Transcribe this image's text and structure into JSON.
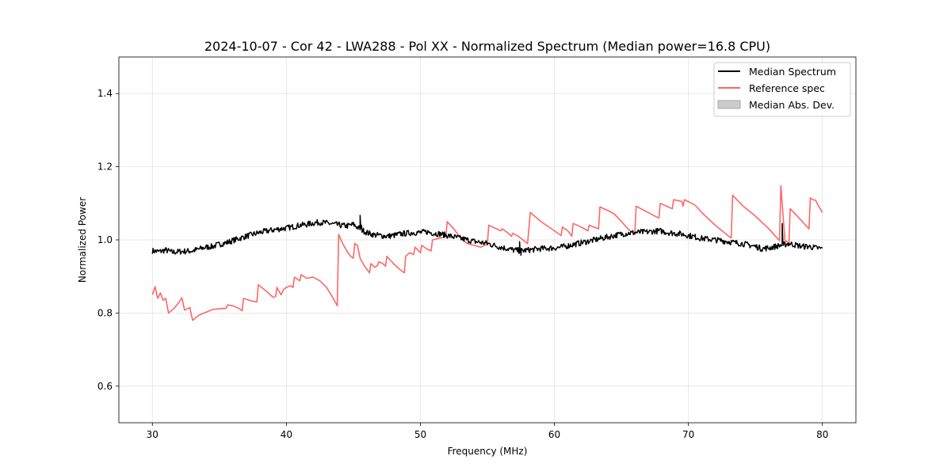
{
  "chart_data": {
    "type": "line",
    "title": "2024-10-07 - Cor 42 - LWA288 - Pol XX - Normalized Spectrum (Median power=16.8 CPU)",
    "xlabel": "Frequency (MHz)",
    "ylabel": "Normalized Power",
    "xlim": [
      27.5,
      82.5
    ],
    "ylim": [
      0.5,
      1.5
    ],
    "xticks": [
      30,
      40,
      50,
      60,
      70,
      80
    ],
    "yticks": [
      0.6,
      0.8,
      1.0,
      1.2,
      1.4
    ],
    "xtick_labels": [
      "30",
      "40",
      "50",
      "60",
      "70",
      "80"
    ],
    "ytick_labels": [
      "0.6",
      "0.8",
      "1.0",
      "1.2",
      "1.4"
    ],
    "grid": true,
    "legend_position": "top-right",
    "legend": [
      "Median Spectrum",
      "Reference spec",
      "Median Abs. Dev."
    ],
    "series": [
      {
        "name": "Median Spectrum",
        "color": "#000000",
        "points": [
          [
            30,
            0.97
          ],
          [
            30.5,
            0.968
          ],
          [
            31,
            0.972
          ],
          [
            31.5,
            0.966
          ],
          [
            32,
            0.968
          ],
          [
            33,
            0.97
          ],
          [
            33.5,
            0.975
          ],
          [
            34,
            0.98
          ],
          [
            34.5,
            0.982
          ],
          [
            35,
            0.988
          ],
          [
            35.5,
            0.992
          ],
          [
            36,
            0.998
          ],
          [
            36.5,
            1.004
          ],
          [
            37,
            1.01
          ],
          [
            37.5,
            1.015
          ],
          [
            38,
            1.02
          ],
          [
            38.5,
            1.024
          ],
          [
            39,
            1.027
          ],
          [
            39.5,
            1.03
          ],
          [
            40,
            1.032
          ],
          [
            40.5,
            1.036
          ],
          [
            41,
            1.04
          ],
          [
            41.5,
            1.042
          ],
          [
            42,
            1.046
          ],
          [
            42.5,
            1.048
          ],
          [
            43,
            1.046
          ],
          [
            43.5,
            1.043
          ],
          [
            44,
            1.04
          ],
          [
            44.5,
            1.038
          ],
          [
            45,
            1.042
          ],
          [
            45.5,
            1.03
          ],
          [
            46,
            1.02
          ],
          [
            46.5,
            1.014
          ],
          [
            47,
            1.012
          ],
          [
            47.5,
            1.01
          ],
          [
            48,
            1.012
          ],
          [
            48.5,
            1.016
          ],
          [
            49,
            1.018
          ],
          [
            49.5,
            1.02
          ],
          [
            50,
            1.02
          ],
          [
            50.5,
            1.022
          ],
          [
            51,
            1.018
          ],
          [
            51.5,
            1.016
          ],
          [
            52,
            1.012
          ],
          [
            52.5,
            1.008
          ],
          [
            53,
            1.004
          ],
          [
            53.5,
            1.0
          ],
          [
            54,
            0.996
          ],
          [
            54.5,
            0.993
          ],
          [
            55,
            0.99
          ],
          [
            55.5,
            0.985
          ],
          [
            56,
            0.98
          ],
          [
            56.5,
            0.976
          ],
          [
            57,
            0.972
          ],
          [
            57.5,
            0.97
          ],
          [
            58,
            0.972
          ],
          [
            58.5,
            0.974
          ],
          [
            59,
            0.976
          ],
          [
            59.5,
            0.977
          ],
          [
            60,
            0.978
          ],
          [
            60.5,
            0.98
          ],
          [
            61,
            0.984
          ],
          [
            61.5,
            0.988
          ],
          [
            62,
            0.992
          ],
          [
            62.5,
            0.996
          ],
          [
            63,
            1.0
          ],
          [
            63.5,
            1.004
          ],
          [
            64,
            1.008
          ],
          [
            64.5,
            1.012
          ],
          [
            65,
            1.016
          ],
          [
            65.5,
            1.018
          ],
          [
            66,
            1.02
          ],
          [
            66.5,
            1.021
          ],
          [
            67,
            1.022
          ],
          [
            67.5,
            1.024
          ],
          [
            68,
            1.024
          ],
          [
            68.5,
            1.02
          ],
          [
            69,
            1.018
          ],
          [
            69.5,
            1.016
          ],
          [
            70,
            1.012
          ],
          [
            70.5,
            1.008
          ],
          [
            71,
            1.004
          ],
          [
            71.5,
            1.002
          ],
          [
            72,
            1.0
          ],
          [
            72.5,
            0.998
          ],
          [
            73,
            0.995
          ],
          [
            73.5,
            0.992
          ],
          [
            74,
            0.99
          ],
          [
            74.5,
            0.986
          ],
          [
            75,
            0.982
          ],
          [
            75.5,
            0.976
          ],
          [
            76,
            0.978
          ],
          [
            76.5,
            0.982
          ],
          [
            77,
            0.986
          ],
          [
            77.5,
            0.99
          ],
          [
            78,
            0.986
          ],
          [
            78.5,
            0.982
          ],
          [
            79,
            0.982
          ],
          [
            79.5,
            0.978
          ],
          [
            80,
            0.976
          ]
        ],
        "spikes": [
          [
            45.5,
            1.067
          ],
          [
            45.6,
            1.04
          ],
          [
            57.4,
            0.995
          ],
          [
            57.5,
            0.958
          ],
          [
            77.0,
            1.045
          ],
          [
            77.1,
            0.985
          ]
        ]
      },
      {
        "name": "Reference spec",
        "color": "#ff6666",
        "points": [
          [
            30,
            0.85
          ],
          [
            30.2,
            0.872
          ],
          [
            30.4,
            0.84
          ],
          [
            30.6,
            0.855
          ],
          [
            30.8,
            0.835
          ],
          [
            31,
            0.84
          ],
          [
            31.2,
            0.8
          ],
          [
            31.6,
            0.812
          ],
          [
            32,
            0.83
          ],
          [
            32.2,
            0.842
          ],
          [
            32.4,
            0.808
          ],
          [
            32.8,
            0.815
          ],
          [
            33,
            0.78
          ],
          [
            33.5,
            0.795
          ],
          [
            34,
            0.802
          ],
          [
            34.5,
            0.81
          ],
          [
            35,
            0.812
          ],
          [
            35.5,
            0.813
          ],
          [
            35.6,
            0.822
          ],
          [
            36,
            0.82
          ],
          [
            36.5,
            0.812
          ],
          [
            36.7,
            0.806
          ],
          [
            36.8,
            0.84
          ],
          [
            37.5,
            0.832
          ],
          [
            37.8,
            0.83
          ],
          [
            37.9,
            0.877
          ],
          [
            38.5,
            0.86
          ],
          [
            39,
            0.843
          ],
          [
            39.2,
            0.845
          ],
          [
            39.3,
            0.87
          ],
          [
            39.6,
            0.85
          ],
          [
            39.8,
            0.865
          ],
          [
            40,
            0.87
          ],
          [
            40.3,
            0.875
          ],
          [
            40.5,
            0.87
          ],
          [
            40.6,
            0.898
          ],
          [
            41,
            0.888
          ],
          [
            41.1,
            0.905
          ],
          [
            41.5,
            0.895
          ],
          [
            42,
            0.898
          ],
          [
            42.5,
            0.888
          ],
          [
            43,
            0.87
          ],
          [
            43.5,
            0.84
          ],
          [
            43.8,
            0.82
          ],
          [
            43.9,
            1.015
          ],
          [
            44.2,
            0.99
          ],
          [
            44.5,
            0.97
          ],
          [
            44.8,
            0.955
          ],
          [
            45,
            0.95
          ],
          [
            45.1,
            0.99
          ],
          [
            45.3,
            0.985
          ],
          [
            45.5,
            0.95
          ],
          [
            45.8,
            0.93
          ],
          [
            46,
            0.92
          ],
          [
            46.2,
            0.91
          ],
          [
            46.3,
            0.935
          ],
          [
            46.6,
            0.925
          ],
          [
            46.8,
            0.93
          ],
          [
            46.9,
            0.94
          ],
          [
            47.2,
            0.935
          ],
          [
            47.4,
            0.928
          ],
          [
            47.5,
            0.955
          ],
          [
            48,
            0.935
          ],
          [
            48.5,
            0.918
          ],
          [
            48.8,
            0.91
          ],
          [
            48.9,
            0.955
          ],
          [
            49.2,
            0.965
          ],
          [
            49.5,
            0.96
          ],
          [
            49.6,
            0.98
          ],
          [
            50,
            0.965
          ],
          [
            50.1,
            0.985
          ],
          [
            50.5,
            0.975
          ],
          [
            50.8,
            0.97
          ],
          [
            50.9,
            1.0
          ],
          [
            51.5,
            1.005
          ],
          [
            51.9,
            1.01
          ],
          [
            52,
            1.05
          ],
          [
            52.5,
            1.03
          ],
          [
            53,
            1.005
          ],
          [
            53.5,
            0.99
          ],
          [
            54,
            0.985
          ],
          [
            54.5,
            0.98
          ],
          [
            55,
            0.988
          ],
          [
            55.1,
            1.04
          ],
          [
            56,
            1.025
          ],
          [
            56.1,
            1.03
          ],
          [
            56.5,
            1.02
          ],
          [
            56.8,
            1.01
          ],
          [
            56.9,
            1.018
          ],
          [
            57.3,
            1.01
          ],
          [
            58,
            0.99
          ],
          [
            58.2,
            1.075
          ],
          [
            59,
            1.05
          ],
          [
            60,
            1.025
          ],
          [
            60.5,
            1.012
          ],
          [
            60.6,
            1.035
          ],
          [
            61,
            1.025
          ],
          [
            61.3,
            1.01
          ],
          [
            61.4,
            1.045
          ],
          [
            62,
            1.035
          ],
          [
            62.5,
            1.025
          ],
          [
            62.6,
            1.04
          ],
          [
            63.3,
            1.03
          ],
          [
            63.4,
            1.09
          ],
          [
            64,
            1.08
          ],
          [
            64.5,
            1.07
          ],
          [
            65,
            1.05
          ],
          [
            65.5,
            1.03
          ],
          [
            66,
            1.015
          ],
          [
            66.1,
            1.092
          ],
          [
            67,
            1.075
          ],
          [
            67.5,
            1.065
          ],
          [
            67.8,
            1.06
          ],
          [
            67.9,
            1.1
          ],
          [
            68.5,
            1.09
          ],
          [
            68.8,
            1.085
          ],
          [
            68.9,
            1.11
          ],
          [
            69.5,
            1.105
          ],
          [
            69.6,
            1.092
          ],
          [
            69.7,
            1.11
          ],
          [
            70.5,
            1.095
          ],
          [
            71,
            1.075
          ],
          [
            72,
            1.04
          ],
          [
            73,
            1.01
          ],
          [
            73.2,
            1.005
          ],
          [
            73.3,
            1.122
          ],
          [
            74,
            1.095
          ],
          [
            75,
            1.065
          ],
          [
            76,
            1.03
          ],
          [
            76.8,
            0.998
          ],
          [
            76.9,
            1.148
          ],
          [
            77.2,
            1.0
          ],
          [
            77.5,
            0.99
          ],
          [
            77.6,
            1.085
          ],
          [
            78,
            1.07
          ],
          [
            78.5,
            1.05
          ],
          [
            79,
            1.03
          ],
          [
            79.1,
            1.115
          ],
          [
            79.3,
            1.11
          ],
          [
            79.5,
            1.108
          ],
          [
            79.6,
            1.1
          ],
          [
            80,
            1.075
          ]
        ]
      },
      {
        "name": "Median Abs. Dev.",
        "color": "#cccccc",
        "type": "band",
        "points": []
      }
    ]
  }
}
